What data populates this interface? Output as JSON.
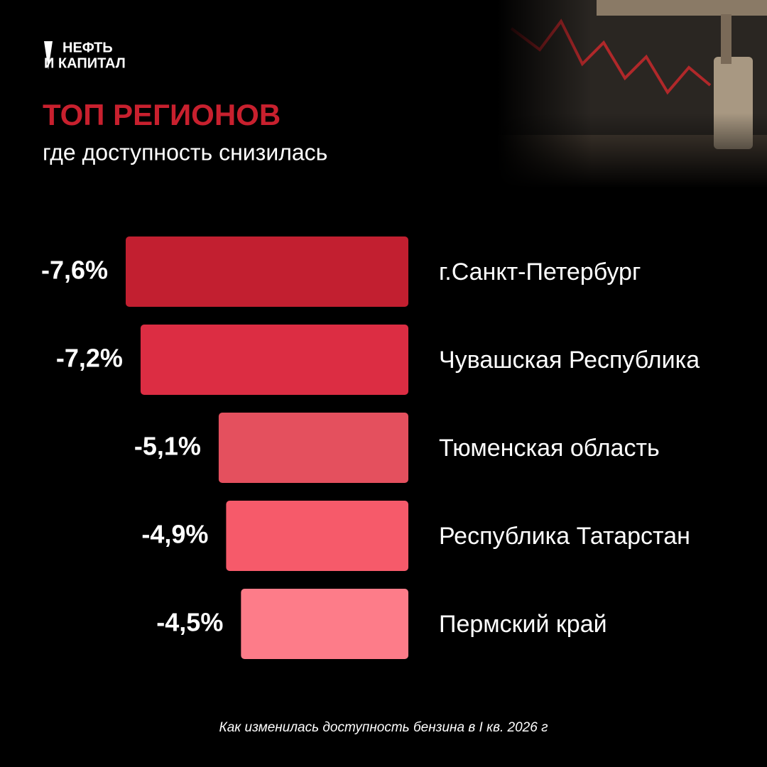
{
  "chart_data": {
    "type": "bar",
    "logo": [
      "НЕФТЬ",
      "И КАПИТАЛ"
    ],
    "title": "ТОП РЕГИОНОВ",
    "subtitle": "где доступность снизилась",
    "categories": [
      "г.Санкт-Петербург",
      "Чувашская Республика",
      "Тюменская область",
      "Республика Татарстан",
      "Пермский край"
    ],
    "values": [
      -7.6,
      -7.2,
      -5.1,
      -4.9,
      -4.5
    ],
    "value_labels": [
      "-7,6%",
      "-7,2%",
      "-5,1%",
      "-4,9%",
      "-4,5%"
    ],
    "colors": [
      "#c21f30",
      "#dc2d43",
      "#e4505e",
      "#f65a6a",
      "#fd7c89"
    ],
    "note": "Как изменилась доступность бензина в I кв. 2026 г"
  }
}
